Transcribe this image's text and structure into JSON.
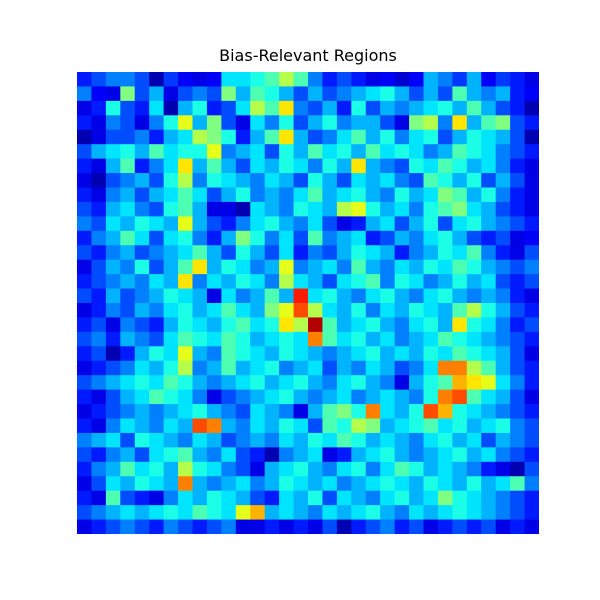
{
  "chart_data": {
    "type": "heatmap",
    "title": "Bias-Relevant Regions",
    "xlabel": "",
    "ylabel": "",
    "axes_visible": false,
    "colormap": "jet",
    "vmin": 0,
    "vmax": 1,
    "grid": false,
    "rows": 32,
    "cols": 32,
    "values": [
      [
        0.15,
        0.2,
        0.25,
        0.25,
        0.2,
        0.05,
        0.18,
        0.12,
        0.1,
        0.12,
        0.35,
        0.35,
        0.4,
        0.45,
        0.55,
        0.45,
        0.25,
        0.15,
        0.2,
        0.15,
        0.1,
        0.12,
        0.08,
        0.12,
        0.3,
        0.25,
        0.18,
        0.3,
        0.12,
        0.18,
        0.15,
        0.1
      ],
      [
        0.25,
        0.12,
        0.1,
        0.5,
        0.2,
        0.3,
        0.1,
        0.2,
        0.25,
        0.2,
        0.5,
        0.3,
        0.45,
        0.4,
        0.3,
        0.2,
        0.3,
        0.2,
        0.25,
        0.3,
        0.35,
        0.4,
        0.3,
        0.2,
        0.3,
        0.2,
        0.45,
        0.3,
        0.25,
        0.3,
        0.15,
        0.12
      ],
      [
        0.1,
        0.15,
        0.4,
        0.2,
        0.15,
        0.35,
        0.05,
        0.3,
        0.4,
        0.15,
        0.2,
        0.35,
        0.55,
        0.45,
        0.65,
        0.25,
        0.2,
        0.3,
        0.15,
        0.4,
        0.2,
        0.3,
        0.25,
        0.3,
        0.35,
        0.4,
        0.3,
        0.45,
        0.3,
        0.2,
        0.15,
        0.05
      ],
      [
        0.15,
        0.1,
        0.25,
        0.2,
        0.1,
        0.25,
        0.4,
        0.6,
        0.3,
        0.5,
        0.2,
        0.1,
        0.35,
        0.25,
        0.4,
        0.2,
        0.3,
        0.4,
        0.25,
        0.3,
        0.3,
        0.2,
        0.1,
        0.5,
        0.55,
        0.25,
        0.65,
        0.3,
        0.45,
        0.5,
        0.2,
        0.15
      ],
      [
        0.05,
        0.1,
        0.2,
        0.2,
        0.25,
        0.15,
        0.3,
        0.35,
        0.55,
        0.5,
        0.4,
        0.15,
        0.3,
        0.45,
        0.65,
        0.3,
        0.2,
        0.25,
        0.35,
        0.45,
        0.3,
        0.4,
        0.25,
        0.35,
        0.4,
        0.2,
        0.3,
        0.4,
        0.35,
        0.3,
        0.2,
        0.05
      ],
      [
        0.2,
        0.3,
        0.35,
        0.4,
        0.3,
        0.45,
        0.35,
        0.4,
        0.4,
        0.6,
        0.25,
        0.3,
        0.35,
        0.2,
        0.4,
        0.3,
        0.45,
        0.35,
        0.4,
        0.3,
        0.45,
        0.35,
        0.4,
        0.35,
        0.25,
        0.3,
        0.45,
        0.4,
        0.35,
        0.25,
        0.2,
        0.15
      ],
      [
        0.15,
        0.1,
        0.3,
        0.45,
        0.15,
        0.25,
        0.35,
        0.65,
        0.3,
        0.45,
        0.3,
        0.2,
        0.35,
        0.3,
        0.4,
        0.35,
        0.25,
        0.4,
        0.3,
        0.65,
        0.3,
        0.25,
        0.2,
        0.4,
        0.35,
        0.45,
        0.4,
        0.3,
        0.35,
        0.25,
        0.15,
        0.1
      ],
      [
        0.1,
        0.05,
        0.2,
        0.25,
        0.3,
        0.2,
        0.4,
        0.55,
        0.25,
        0.4,
        0.35,
        0.3,
        0.25,
        0.35,
        0.3,
        0.2,
        0.4,
        0.3,
        0.2,
        0.35,
        0.3,
        0.35,
        0.25,
        0.2,
        0.45,
        0.4,
        0.3,
        0.4,
        0.2,
        0.3,
        0.2,
        0.1
      ],
      [
        0.15,
        0.1,
        0.25,
        0.3,
        0.2,
        0.3,
        0.35,
        0.45,
        0.35,
        0.2,
        0.3,
        0.4,
        0.25,
        0.3,
        0.25,
        0.35,
        0.45,
        0.3,
        0.35,
        0.4,
        0.3,
        0.25,
        0.4,
        0.3,
        0.35,
        0.5,
        0.45,
        0.3,
        0.4,
        0.25,
        0.15,
        0.1
      ],
      [
        0.2,
        0.15,
        0.3,
        0.35,
        0.25,
        0.2,
        0.4,
        0.45,
        0.3,
        0.1,
        0.1,
        0.05,
        0.35,
        0.3,
        0.25,
        0.4,
        0.35,
        0.3,
        0.55,
        0.6,
        0.4,
        0.3,
        0.35,
        0.25,
        0.4,
        0.45,
        0.5,
        0.35,
        0.3,
        0.2,
        0.15,
        0.1
      ],
      [
        0.25,
        0.2,
        0.35,
        0.3,
        0.4,
        0.35,
        0.3,
        0.6,
        0.3,
        0.2,
        0.15,
        0.25,
        0.35,
        0.4,
        0.3,
        0.25,
        0.35,
        0.2,
        0.1,
        0.15,
        0.3,
        0.35,
        0.2,
        0.3,
        0.4,
        0.2,
        0.35,
        0.4,
        0.3,
        0.25,
        0.2,
        0.15
      ],
      [
        0.15,
        0.25,
        0.3,
        0.45,
        0.35,
        0.2,
        0.35,
        0.4,
        0.25,
        0.15,
        0.3,
        0.5,
        0.4,
        0.25,
        0.35,
        0.2,
        0.45,
        0.25,
        0.3,
        0.35,
        0.15,
        0.2,
        0.3,
        0.25,
        0.35,
        0.4,
        0.3,
        0.2,
        0.15,
        0.2,
        0.1,
        0.12
      ],
      [
        0.2,
        0.15,
        0.25,
        0.3,
        0.2,
        0.25,
        0.3,
        0.35,
        0.45,
        0.3,
        0.2,
        0.4,
        0.3,
        0.2,
        0.35,
        0.15,
        0.25,
        0.2,
        0.3,
        0.4,
        0.35,
        0.3,
        0.15,
        0.25,
        0.3,
        0.4,
        0.35,
        0.45,
        0.25,
        0.15,
        0.1,
        0.2
      ],
      [
        0.1,
        0.2,
        0.3,
        0.25,
        0.4,
        0.2,
        0.3,
        0.45,
        0.65,
        0.3,
        0.4,
        0.35,
        0.25,
        0.3,
        0.6,
        0.25,
        0.3,
        0.35,
        0.25,
        0.45,
        0.3,
        0.25,
        0.35,
        0.3,
        0.4,
        0.35,
        0.45,
        0.4,
        0.3,
        0.25,
        0.2,
        0.25
      ],
      [
        0.15,
        0.2,
        0.25,
        0.3,
        0.25,
        0.35,
        0.3,
        0.65,
        0.25,
        0.35,
        0.3,
        0.4,
        0.35,
        0.25,
        0.55,
        0.35,
        0.3,
        0.2,
        0.35,
        0.4,
        0.45,
        0.25,
        0.4,
        0.35,
        0.25,
        0.3,
        0.4,
        0.3,
        0.35,
        0.2,
        0.15,
        0.2
      ],
      [
        0.2,
        0.15,
        0.3,
        0.2,
        0.25,
        0.3,
        0.4,
        0.35,
        0.3,
        0.1,
        0.35,
        0.25,
        0.3,
        0.45,
        0.3,
        0.85,
        0.35,
        0.4,
        0.3,
        0.25,
        0.35,
        0.4,
        0.3,
        0.25,
        0.35,
        0.4,
        0.3,
        0.25,
        0.3,
        0.25,
        0.15,
        0.1
      ],
      [
        0.1,
        0.15,
        0.25,
        0.2,
        0.3,
        0.25,
        0.35,
        0.4,
        0.3,
        0.35,
        0.45,
        0.35,
        0.3,
        0.5,
        0.6,
        0.8,
        0.55,
        0.35,
        0.3,
        0.4,
        0.25,
        0.35,
        0.3,
        0.4,
        0.35,
        0.3,
        0.45,
        0.55,
        0.4,
        0.3,
        0.2,
        0.15
      ],
      [
        0.15,
        0.2,
        0.1,
        0.25,
        0.2,
        0.15,
        0.3,
        0.4,
        0.35,
        0.3,
        0.4,
        0.45,
        0.35,
        0.4,
        0.65,
        0.55,
        0.95,
        0.45,
        0.3,
        0.35,
        0.4,
        0.3,
        0.25,
        0.35,
        0.4,
        0.3,
        0.65,
        0.4,
        0.35,
        0.25,
        0.15,
        0.2
      ],
      [
        0.2,
        0.25,
        0.15,
        0.3,
        0.25,
        0.2,
        0.35,
        0.45,
        0.4,
        0.35,
        0.45,
        0.4,
        0.3,
        0.35,
        0.4,
        0.35,
        0.75,
        0.45,
        0.35,
        0.4,
        0.3,
        0.35,
        0.25,
        0.3,
        0.35,
        0.45,
        0.4,
        0.35,
        0.3,
        0.25,
        0.2,
        0.15
      ],
      [
        0.15,
        0.2,
        0.05,
        0.15,
        0.3,
        0.4,
        0.35,
        0.6,
        0.3,
        0.25,
        0.45,
        0.4,
        0.35,
        0.3,
        0.4,
        0.35,
        0.3,
        0.25,
        0.3,
        0.35,
        0.4,
        0.3,
        0.35,
        0.3,
        0.4,
        0.35,
        0.45,
        0.4,
        0.35,
        0.3,
        0.2,
        0.1
      ],
      [
        0.1,
        0.15,
        0.2,
        0.25,
        0.35,
        0.3,
        0.4,
        0.55,
        0.25,
        0.3,
        0.45,
        0.3,
        0.35,
        0.4,
        0.25,
        0.3,
        0.35,
        0.2,
        0.3,
        0.25,
        0.35,
        0.3,
        0.2,
        0.25,
        0.35,
        0.75,
        0.75,
        0.55,
        0.45,
        0.3,
        0.2,
        0.15
      ],
      [
        0.2,
        0.25,
        0.3,
        0.35,
        0.4,
        0.35,
        0.45,
        0.4,
        0.3,
        0.25,
        0.3,
        0.35,
        0.4,
        0.3,
        0.35,
        0.4,
        0.3,
        0.25,
        0.35,
        0.4,
        0.3,
        0.25,
        0.1,
        0.3,
        0.4,
        0.45,
        0.7,
        0.65,
        0.6,
        0.35,
        0.25,
        0.15
      ],
      [
        0.15,
        0.1,
        0.2,
        0.3,
        0.35,
        0.45,
        0.4,
        0.35,
        0.25,
        0.1,
        0.2,
        0.25,
        0.3,
        0.35,
        0.4,
        0.3,
        0.25,
        0.3,
        0.35,
        0.25,
        0.3,
        0.35,
        0.3,
        0.25,
        0.4,
        0.75,
        0.8,
        0.45,
        0.35,
        0.3,
        0.2,
        0.1
      ],
      [
        0.1,
        0.15,
        0.2,
        0.25,
        0.3,
        0.25,
        0.3,
        0.35,
        0.4,
        0.3,
        0.25,
        0.2,
        0.35,
        0.3,
        0.25,
        0.1,
        0.3,
        0.45,
        0.5,
        0.4,
        0.75,
        0.35,
        0.3,
        0.4,
        0.8,
        0.7,
        0.4,
        0.35,
        0.3,
        0.25,
        0.2,
        0.15
      ],
      [
        0.15,
        0.1,
        0.25,
        0.35,
        0.3,
        0.25,
        0.35,
        0.3,
        0.8,
        0.75,
        0.3,
        0.25,
        0.35,
        0.3,
        0.4,
        0.35,
        0.2,
        0.45,
        0.4,
        0.55,
        0.5,
        0.3,
        0.35,
        0.4,
        0.45,
        0.35,
        0.4,
        0.3,
        0.35,
        0.4,
        0.25,
        0.2
      ],
      [
        0.25,
        0.3,
        0.35,
        0.2,
        0.4,
        0.35,
        0.3,
        0.25,
        0.35,
        0.3,
        0.2,
        0.25,
        0.3,
        0.25,
        0.35,
        0.3,
        0.4,
        0.35,
        0.45,
        0.4,
        0.3,
        0.35,
        0.3,
        0.25,
        0.35,
        0.4,
        0.3,
        0.35,
        0.2,
        0.3,
        0.25,
        0.2
      ],
      [
        0.2,
        0.15,
        0.25,
        0.3,
        0.2,
        0.35,
        0.4,
        0.45,
        0.3,
        0.25,
        0.35,
        0.2,
        0.15,
        0.05,
        0.25,
        0.3,
        0.35,
        0.1,
        0.15,
        0.3,
        0.35,
        0.4,
        0.3,
        0.25,
        0.3,
        0.35,
        0.4,
        0.3,
        0.35,
        0.25,
        0.2,
        0.15
      ],
      [
        0.15,
        0.25,
        0.3,
        0.45,
        0.35,
        0.4,
        0.3,
        0.55,
        0.4,
        0.35,
        0.25,
        0.2,
        0.1,
        0.3,
        0.35,
        0.4,
        0.3,
        0.25,
        0.35,
        0.4,
        0.25,
        0.35,
        0.45,
        0.4,
        0.3,
        0.35,
        0.3,
        0.25,
        0.15,
        0.1,
        0.05,
        0.2
      ],
      [
        0.1,
        0.2,
        0.35,
        0.3,
        0.4,
        0.35,
        0.3,
        0.75,
        0.3,
        0.25,
        0.3,
        0.35,
        0.25,
        0.3,
        0.4,
        0.35,
        0.3,
        0.35,
        0.25,
        0.3,
        0.35,
        0.4,
        0.35,
        0.3,
        0.4,
        0.35,
        0.3,
        0.4,
        0.3,
        0.35,
        0.45,
        0.25
      ],
      [
        0.15,
        0.1,
        0.45,
        0.2,
        0.15,
        0.1,
        0.25,
        0.35,
        0.3,
        0.4,
        0.35,
        0.3,
        0.2,
        0.15,
        0.35,
        0.3,
        0.4,
        0.2,
        0.35,
        0.3,
        0.25,
        0.35,
        0.4,
        0.3,
        0.35,
        0.5,
        0.4,
        0.35,
        0.3,
        0.25,
        0.2,
        0.15
      ],
      [
        0.2,
        0.25,
        0.3,
        0.35,
        0.3,
        0.35,
        0.4,
        0.35,
        0.45,
        0.4,
        0.35,
        0.6,
        0.7,
        0.3,
        0.35,
        0.3,
        0.25,
        0.35,
        0.3,
        0.35,
        0.4,
        0.3,
        0.25,
        0.35,
        0.3,
        0.35,
        0.4,
        0.35,
        0.3,
        0.25,
        0.2,
        0.15
      ],
      [
        0.1,
        0.15,
        0.2,
        0.25,
        0.2,
        0.15,
        0.25,
        0.2,
        0.15,
        0.2,
        0.25,
        0.1,
        0.1,
        0.15,
        0.1,
        0.15,
        0.1,
        0.2,
        0.05,
        0.15,
        0.2,
        0.25,
        0.15,
        0.2,
        0.1,
        0.15,
        0.2,
        0.15,
        0.2,
        0.1,
        0.15,
        0.1
      ]
    ]
  }
}
